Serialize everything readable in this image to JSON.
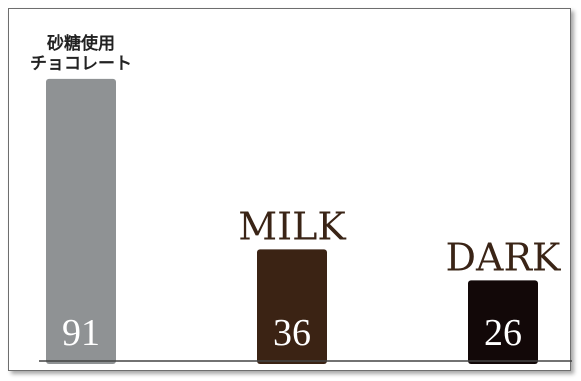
{
  "chart_data": {
    "type": "bar",
    "categories": [
      "砂糖使用\nチョコレート",
      "MILK",
      "DARK"
    ],
    "values": [
      91,
      36,
      26
    ],
    "colors": [
      "#8f9294",
      "#3b2314",
      "#120808"
    ],
    "title": "",
    "xlabel": "",
    "ylabel": "",
    "ylim": [
      0,
      100
    ],
    "grid": false,
    "legend": "none"
  }
}
